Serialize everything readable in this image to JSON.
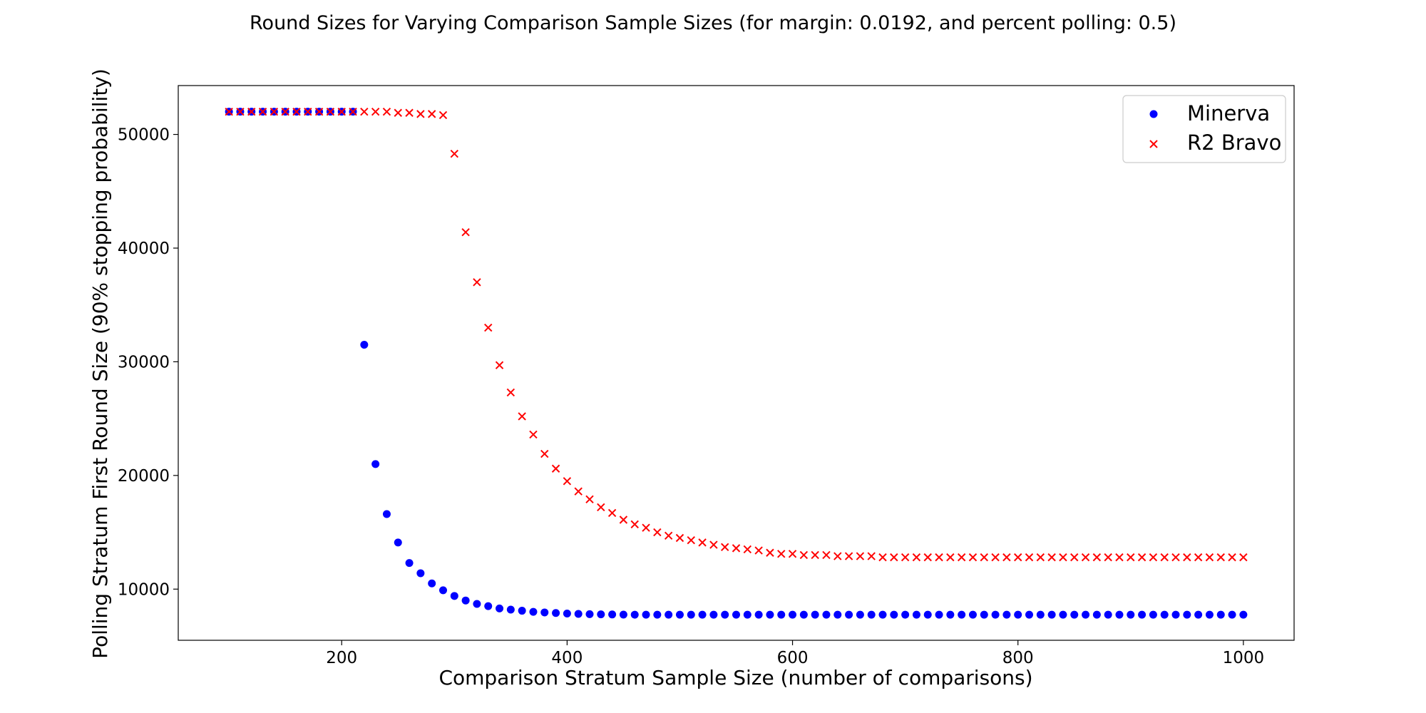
{
  "chart_data": {
    "type": "scatter",
    "title": "Round Sizes for Varying Comparison Sample Sizes (for margin: 0.0192, and percent polling: 0.5)",
    "xlabel": "Comparison Stratum Sample Size (number of comparisons)",
    "ylabel": "Polling Stratum First Round Size (90% stopping probability)",
    "xlim": [
      55,
      1045
    ],
    "ylim": [
      5500,
      54300
    ],
    "xticks": [
      200,
      400,
      600,
      800,
      1000
    ],
    "yticks": [
      10000,
      20000,
      30000,
      40000,
      50000
    ],
    "xtick_labels": [
      "200",
      "400",
      "600",
      "800",
      "1000"
    ],
    "ytick_labels": [
      "10000",
      "20000",
      "30000",
      "40000",
      "50000"
    ],
    "legend_position": "top-right",
    "x": [
      100,
      110,
      120,
      130,
      140,
      150,
      160,
      170,
      180,
      190,
      200,
      210,
      220,
      230,
      240,
      250,
      260,
      270,
      280,
      290,
      300,
      310,
      320,
      330,
      340,
      350,
      360,
      370,
      380,
      390,
      400,
      410,
      420,
      430,
      440,
      450,
      460,
      470,
      480,
      490,
      500,
      510,
      520,
      530,
      540,
      550,
      560,
      570,
      580,
      590,
      600,
      610,
      620,
      630,
      640,
      650,
      660,
      670,
      680,
      690,
      700,
      710,
      720,
      730,
      740,
      750,
      760,
      770,
      780,
      790,
      800,
      810,
      820,
      830,
      840,
      850,
      860,
      870,
      880,
      890,
      900,
      910,
      920,
      930,
      940,
      950,
      960,
      970,
      980,
      990,
      1000
    ],
    "series": [
      {
        "name": "Minerva",
        "marker": "circle",
        "color": "#0000ff",
        "values": [
          52000,
          52000,
          52000,
          52000,
          52000,
          52000,
          52000,
          52000,
          52000,
          52000,
          52000,
          52000,
          31500,
          21000,
          16600,
          14100,
          12300,
          11400,
          10500,
          9900,
          9400,
          9000,
          8700,
          8500,
          8300,
          8200,
          8100,
          8000,
          7950,
          7900,
          7850,
          7820,
          7800,
          7780,
          7770,
          7760,
          7750,
          7750,
          7750,
          7750,
          7750,
          7750,
          7750,
          7750,
          7750,
          7750,
          7750,
          7750,
          7750,
          7750,
          7750,
          7750,
          7750,
          7750,
          7750,
          7750,
          7750,
          7750,
          7750,
          7750,
          7750,
          7750,
          7750,
          7750,
          7750,
          7750,
          7750,
          7750,
          7750,
          7750,
          7750,
          7750,
          7750,
          7750,
          7750,
          7750,
          7750,
          7750,
          7750,
          7750,
          7750,
          7750,
          7750,
          7750,
          7750,
          7750,
          7750,
          7750,
          7750,
          7750,
          7750
        ]
      },
      {
        "name": "R2 Bravo",
        "marker": "x",
        "color": "#ff0000",
        "values": [
          52000,
          52000,
          52000,
          52000,
          52000,
          52000,
          52000,
          52000,
          52000,
          52000,
          52000,
          52000,
          52000,
          52000,
          52000,
          51900,
          51900,
          51800,
          51800,
          51700,
          48300,
          41400,
          37000,
          33000,
          29700,
          27300,
          25200,
          23600,
          21900,
          20600,
          19500,
          18600,
          17900,
          17200,
          16700,
          16100,
          15700,
          15400,
          15000,
          14700,
          14500,
          14300,
          14100,
          13900,
          13700,
          13600,
          13500,
          13400,
          13200,
          13100,
          13100,
          13000,
          13000,
          13000,
          12900,
          12900,
          12900,
          12900,
          12800,
          12800,
          12800,
          12800,
          12800,
          12800,
          12800,
          12800,
          12800,
          12800,
          12800,
          12800,
          12800,
          12800,
          12800,
          12800,
          12800,
          12800,
          12800,
          12800,
          12800,
          12800,
          12800,
          12800,
          12800,
          12800,
          12800,
          12800,
          12800,
          12800,
          12800,
          12800,
          12800
        ]
      }
    ]
  }
}
